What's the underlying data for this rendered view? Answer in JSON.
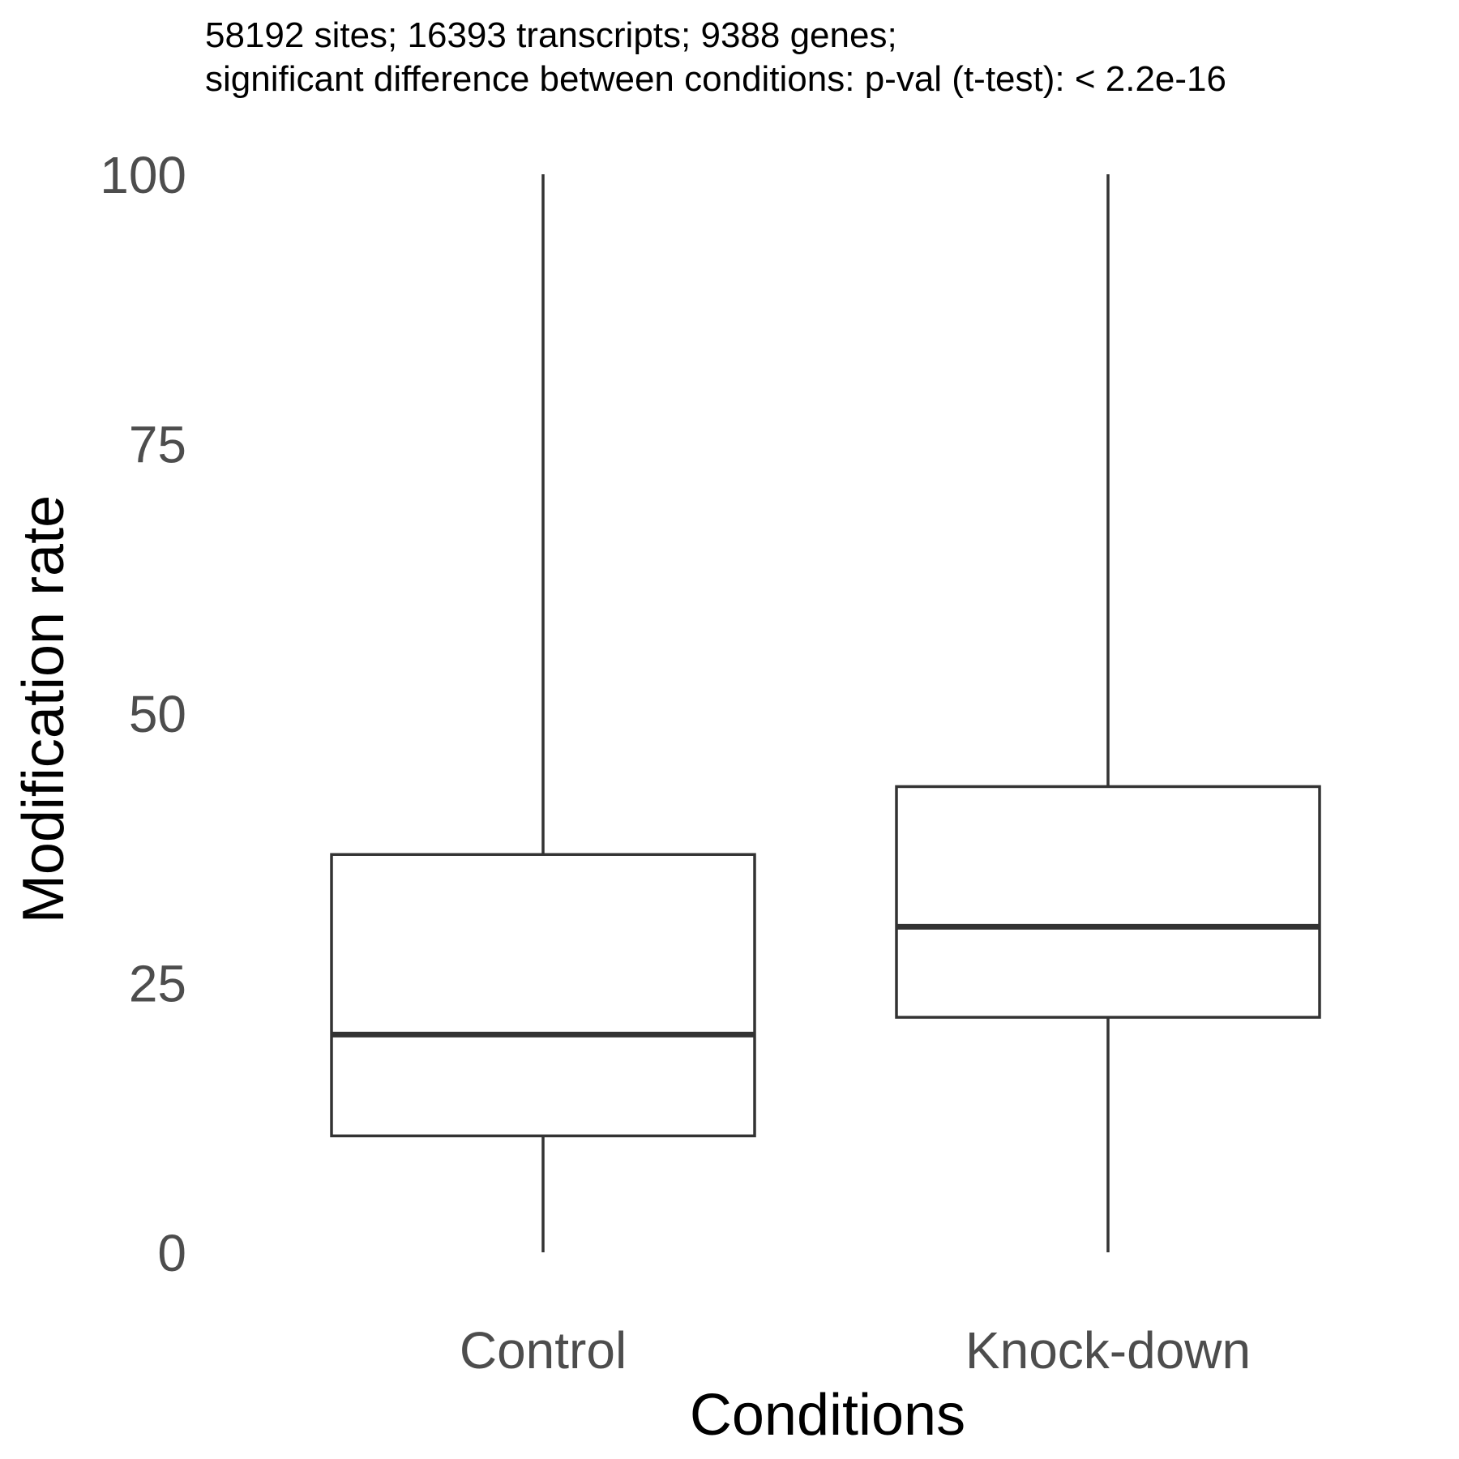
{
  "chart_data": {
    "type": "boxplot",
    "subtitle_lines": [
      "58192 sites; 16393 transcripts; 9388 genes;",
      "significant difference between conditions: p-val (t-test): < 2.2e-16"
    ],
    "xlabel": "Conditions",
    "ylabel": "Modification rate",
    "ylim": [
      0,
      100
    ],
    "yticks": [
      0,
      25,
      50,
      75,
      100
    ],
    "categories": [
      "Control",
      "Knock-down"
    ],
    "boxes": [
      {
        "category": "Control",
        "min": 0,
        "q1": 10.8,
        "median": 20.2,
        "q3": 36.9,
        "max": 100
      },
      {
        "category": "Knock-down",
        "min": 0,
        "q1": 21.8,
        "median": 30.2,
        "q3": 43.2,
        "max": 100
      }
    ],
    "grid": false,
    "legend": "none"
  }
}
